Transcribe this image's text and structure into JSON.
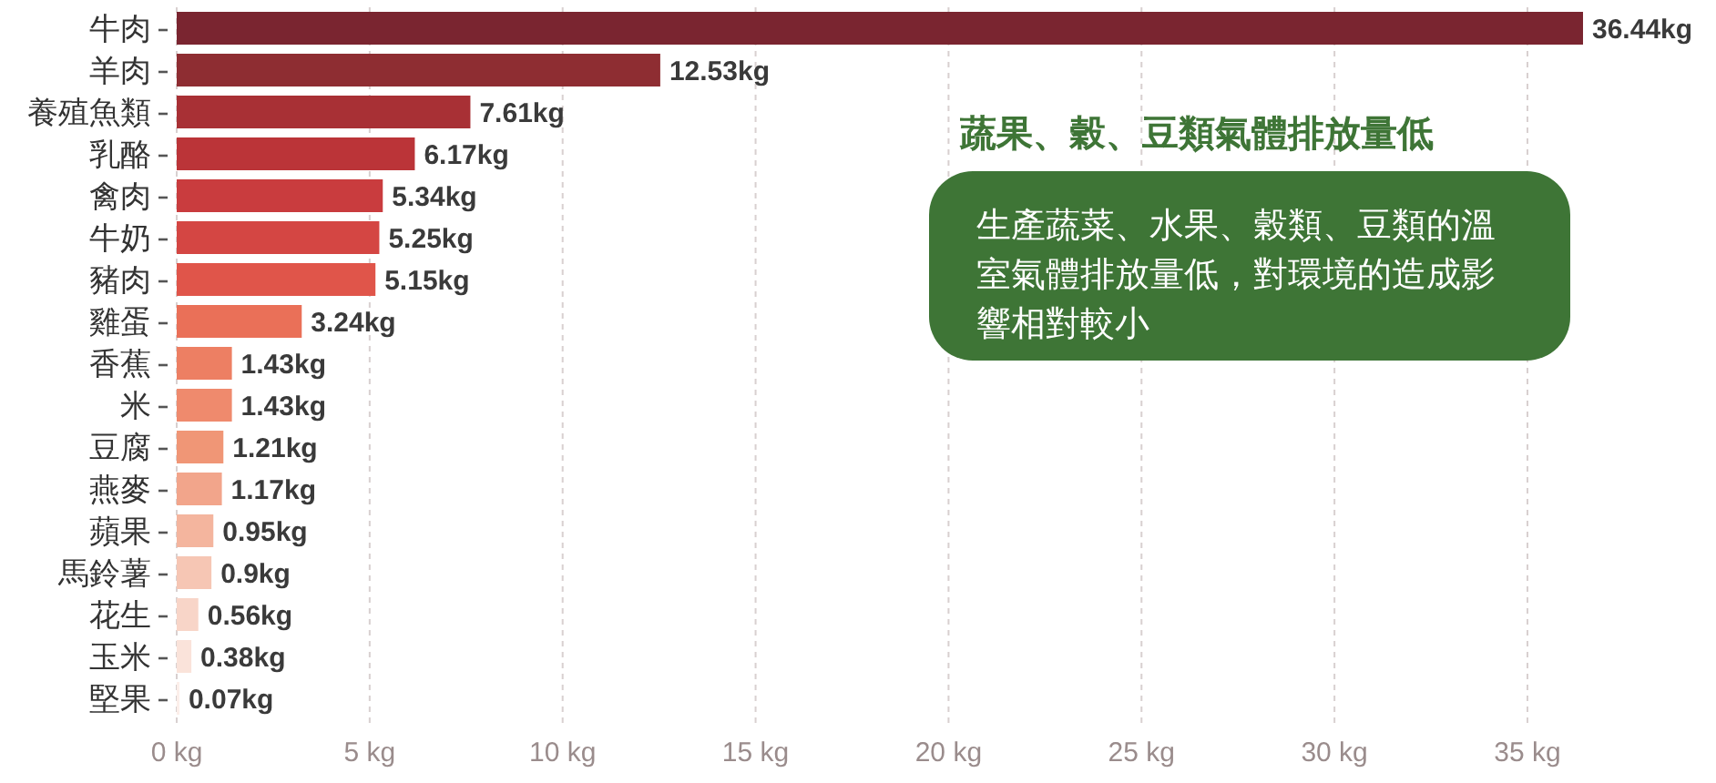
{
  "chart_data": {
    "type": "bar",
    "orientation": "horizontal",
    "categories": [
      "牛肉",
      "羊肉",
      "養殖魚類",
      "乳酪",
      "禽肉",
      "牛奶",
      "豬肉",
      "雞蛋",
      "香蕉",
      "米",
      "豆腐",
      "燕麥",
      "蘋果",
      "馬鈴薯",
      "花生",
      "玉米",
      "堅果"
    ],
    "values": [
      36.44,
      12.53,
      7.61,
      6.17,
      5.34,
      5.25,
      5.15,
      3.24,
      1.43,
      1.43,
      1.21,
      1.17,
      0.95,
      0.9,
      0.56,
      0.38,
      0.07
    ],
    "value_labels": [
      "36.44kg",
      "12.53kg",
      "7.61kg",
      "6.17kg",
      "5.34kg",
      "5.25kg",
      "5.15kg",
      "3.24kg",
      "1.43kg",
      "1.43kg",
      "1.21kg",
      "1.17kg",
      "0.95kg",
      "0.9kg",
      "0.56kg",
      "0.38kg",
      "0.07kg"
    ],
    "colors": [
      "#7a2530",
      "#8e2d32",
      "#a83035",
      "#bb3438",
      "#c93c3e",
      "#d44643",
      "#e0554a",
      "#ea7058",
      "#ed7f63",
      "#ef8a6d",
      "#f09676",
      "#f2a58b",
      "#f4b59e",
      "#f6c6b4",
      "#f8d5c8",
      "#fae3da",
      "#fcefea"
    ],
    "xlim": [
      0,
      36.44
    ],
    "xticks": [
      {
        "value": 0,
        "label": "0 kg"
      },
      {
        "value": 5,
        "label": "5 kg"
      },
      {
        "value": 10,
        "label": "10 kg"
      },
      {
        "value": 15,
        "label": "15 kg"
      },
      {
        "value": 20,
        "label": "20 kg"
      },
      {
        "value": 25,
        "label": "25 kg"
      },
      {
        "value": 30,
        "label": "30 kg"
      },
      {
        "value": 35,
        "label": "35 kg"
      }
    ],
    "grid": "x",
    "annotations": [
      "蔬果、穀、豆類氣體排放量低",
      "生產蔬菜、水果、穀類、豆類的溫室氣體排放量低，對環境的造成影響相對較小"
    ]
  }
}
